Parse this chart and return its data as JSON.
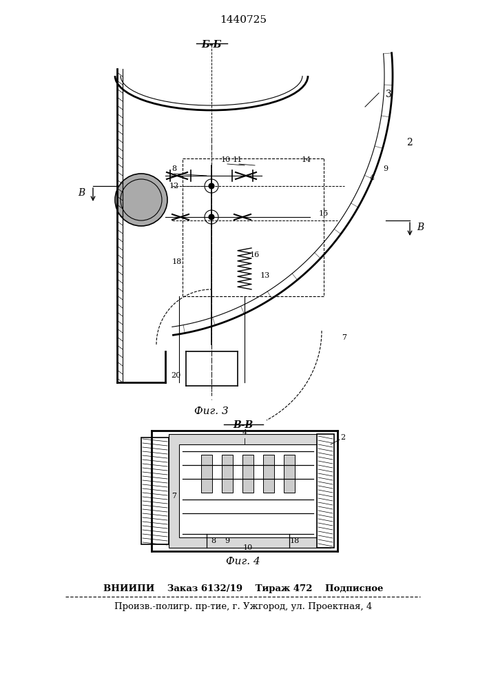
{
  "title": "1440725",
  "fig3_label": "Фиг. 3",
  "fig4_label": "Фиг. 4",
  "section_bb": "Б-Б",
  "section_vv": "В-В",
  "section_bb2": "В-В",
  "footer_line1": "ВНИИПИ    Заказ 6132/19    Тираж 472    Подписное",
  "footer_line2": "Произв.-полигр. пр-тие, г. Ужгород, ул. Проектная, 4",
  "bg_color": "#ffffff",
  "line_color": "#000000",
  "hatch_color": "#555555"
}
